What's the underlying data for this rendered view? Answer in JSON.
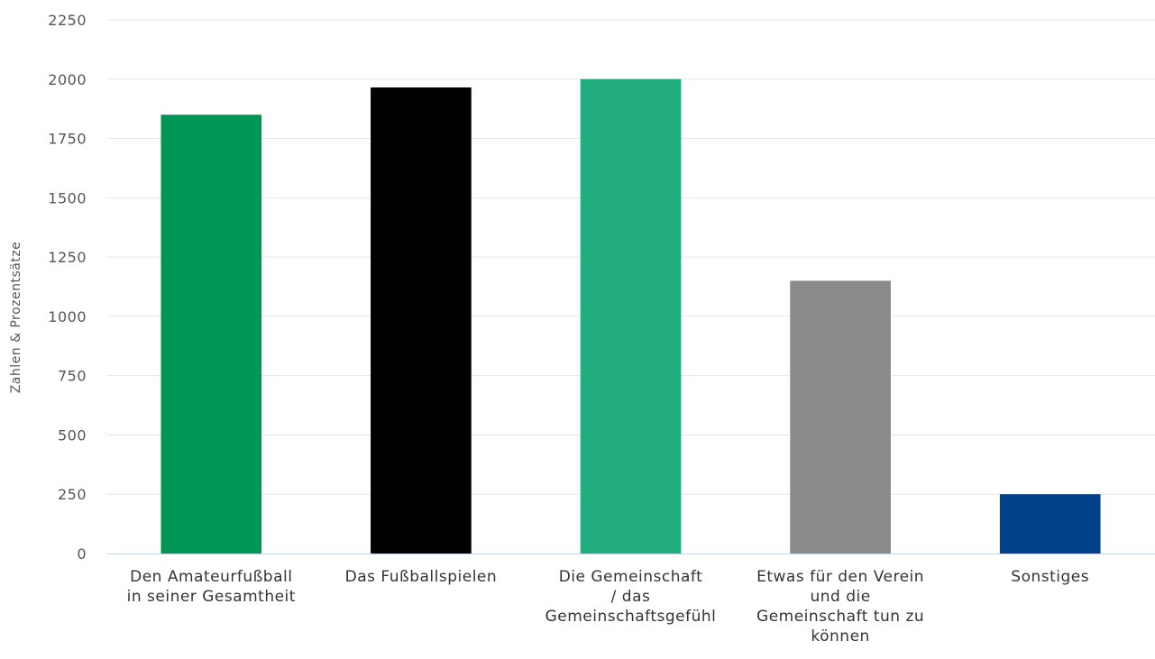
{
  "chart_data": {
    "type": "bar",
    "title": "",
    "xlabel": "",
    "ylabel": "Zahlen & Prozentsätze",
    "categories": [
      "Den Amateurfußball in seiner Gesamtheit",
      "Das Fußballspielen",
      "Die Gemeinschaft / das Gemeinschaftsgefühl",
      "Etwas für den Verein und die Gemeinschaft tun zu können",
      "Sonstiges"
    ],
    "category_lines": [
      [
        "Den Amateurfußball",
        "in seiner Gesamtheit"
      ],
      [
        "Das Fußballspielen"
      ],
      [
        "Die Gemeinschaft",
        "/ das",
        "Gemeinschaftsgefühl"
      ],
      [
        "Etwas für den Verein",
        "und die",
        "Gemeinschaft tun zu",
        "können"
      ],
      [
        "Sonstiges"
      ]
    ],
    "values": [
      1850,
      1965,
      2000,
      1150,
      250
    ],
    "colors": [
      "#009658",
      "#000000",
      "#21ad80",
      "#8a8a8a",
      "#00418a"
    ],
    "ylim": [
      0,
      2250
    ],
    "yticks": [
      "0",
      "250",
      "500",
      "750",
      "1000",
      "1250",
      "1500",
      "1750",
      "2000",
      "2250"
    ],
    "grid": true,
    "legend": "none"
  }
}
